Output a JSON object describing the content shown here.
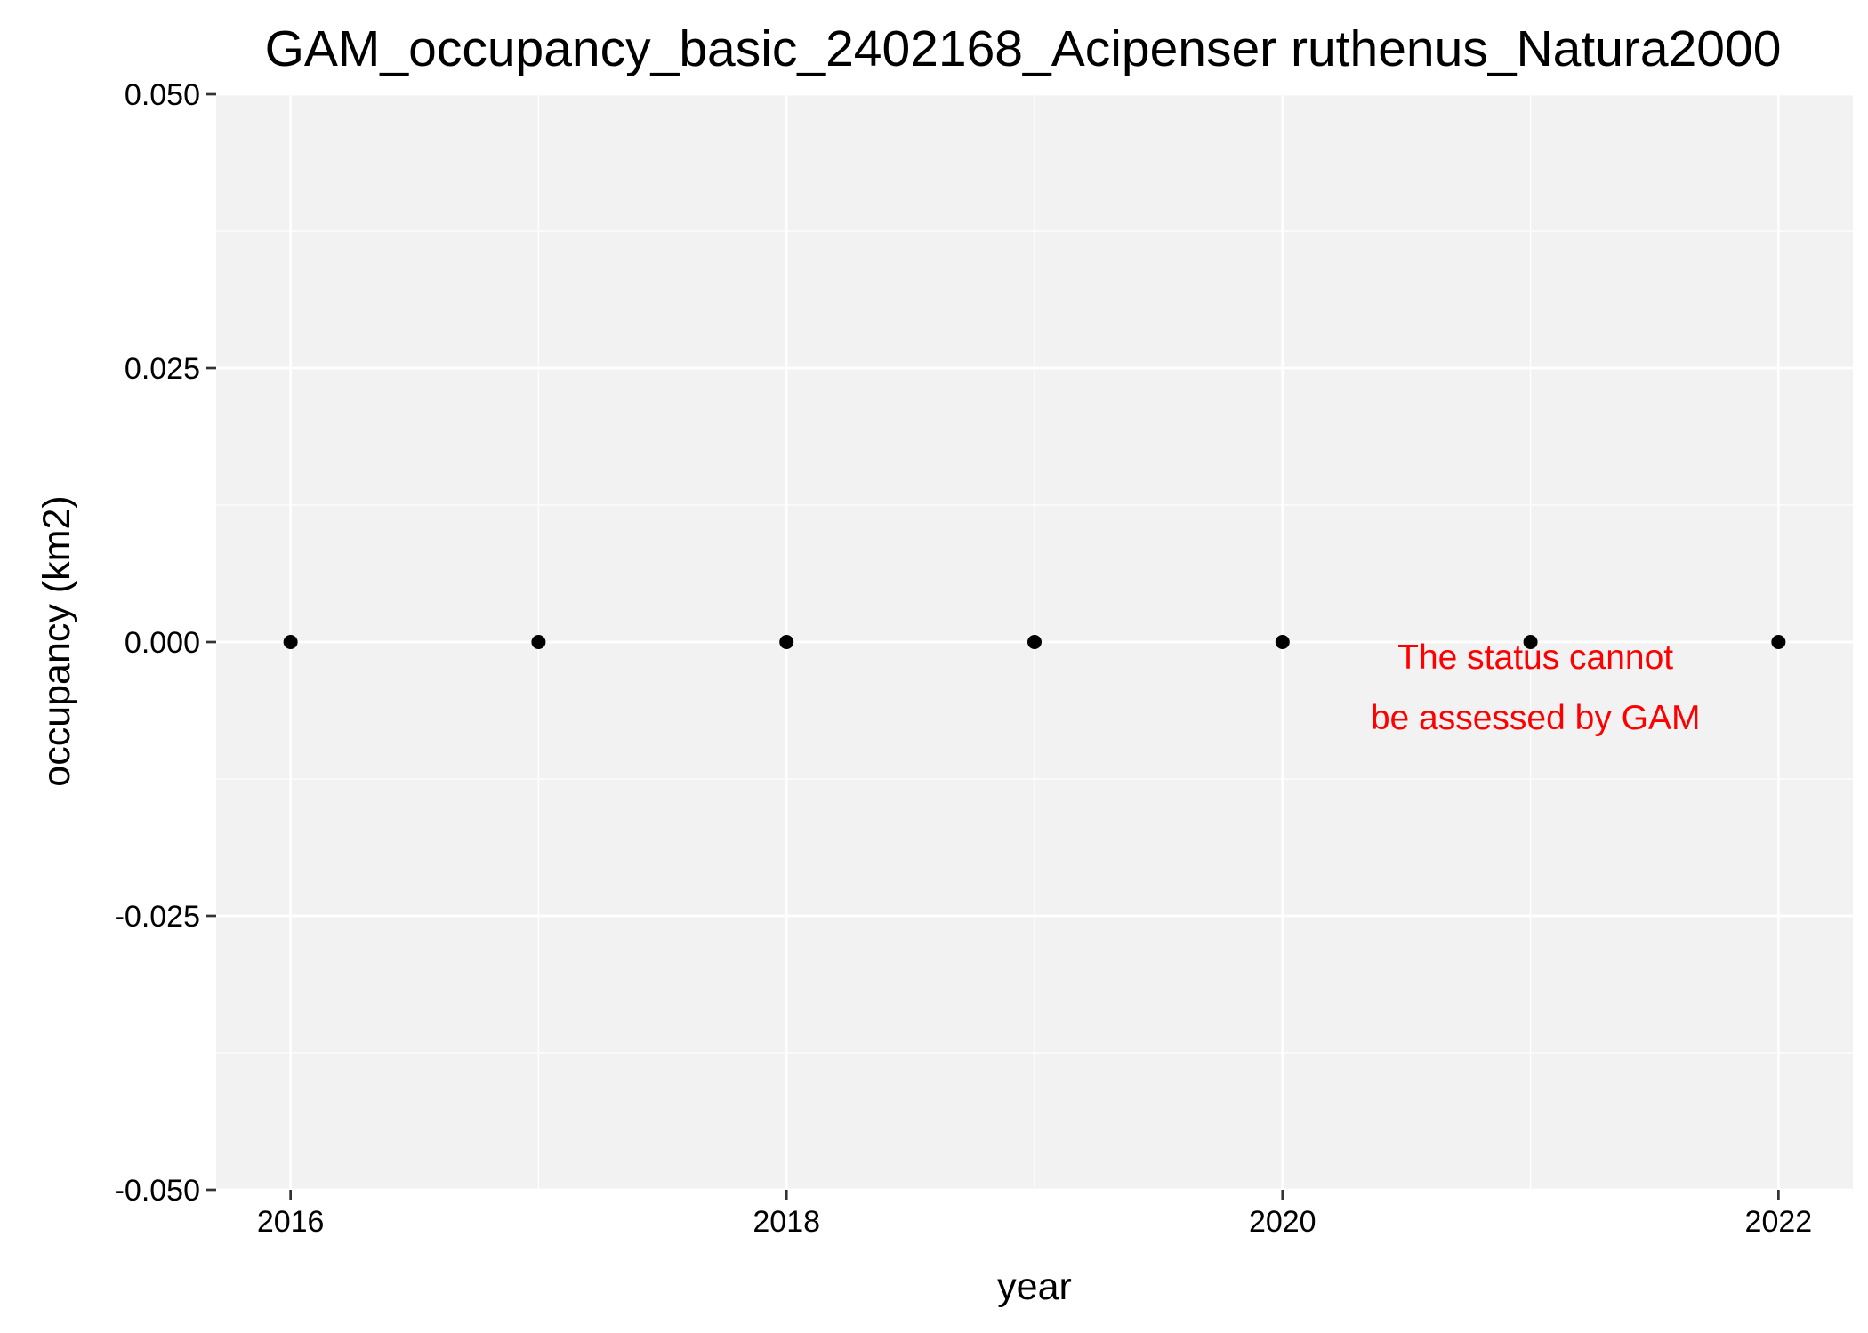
{
  "chart_data": {
    "type": "scatter",
    "title": "GAM_occupancy_basic_2402168_Acipenser ruthenus_Natura2000",
    "xlabel": "year",
    "ylabel": "occupancy (km2)",
    "xlim": [
      2015.7,
      2022.3
    ],
    "ylim": [
      -0.05,
      0.05
    ],
    "x_ticks": [
      2016,
      2018,
      2020,
      2022
    ],
    "y_ticks": [
      -0.05,
      -0.025,
      0.0,
      0.025,
      0.05
    ],
    "y_tick_labels": [
      "-0.050",
      "-0.025",
      "0.000",
      "0.025",
      "0.050"
    ],
    "x_minor_ticks": [
      2017,
      2019,
      2021
    ],
    "y_minor_ticks": [
      -0.0375,
      -0.0125,
      0.0125,
      0.0375
    ],
    "grid": true,
    "points": [
      {
        "x": 2016,
        "y": 0
      },
      {
        "x": 2017,
        "y": 0
      },
      {
        "x": 2018,
        "y": 0
      },
      {
        "x": 2019,
        "y": 0
      },
      {
        "x": 2020,
        "y": 0
      },
      {
        "x": 2021,
        "y": 0
      },
      {
        "x": 2022,
        "y": 0
      }
    ],
    "annotation": {
      "lines": [
        "The status cannot",
        "be assessed by GAM"
      ],
      "color": "#ff0000"
    },
    "colors": {
      "panel_background": "#f2f2f2",
      "grid": "#ffffff",
      "point": "#000000",
      "tick": "#333333"
    }
  }
}
